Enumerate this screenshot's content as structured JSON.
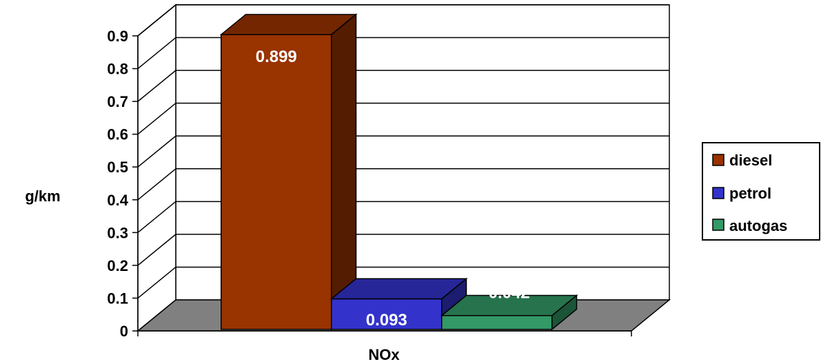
{
  "chart_data": {
    "type": "bar",
    "projection": "3d-clustered",
    "title": "",
    "xlabel": "",
    "ylabel": "g/km",
    "categories": [
      "NOx"
    ],
    "series": [
      {
        "name": "diesel",
        "values": [
          0.899
        ],
        "color": "#993300",
        "data_label": "0.899"
      },
      {
        "name": "petrol",
        "values": [
          0.093
        ],
        "color": "#3333CC",
        "data_label": "0.093"
      },
      {
        "name": "autogas",
        "values": [
          0.042
        ],
        "color": "#339966",
        "data_label": "0.042"
      }
    ],
    "ylim": [
      0,
      0.9
    ],
    "yticks": [
      0,
      0.1,
      0.2,
      0.3,
      0.4,
      0.5,
      0.6,
      0.7,
      0.8,
      0.9
    ],
    "ytick_labels": [
      "0",
      "0.1",
      "0.2",
      "0.3",
      "0.4",
      "0.5",
      "0.6",
      "0.7",
      "0.8",
      "0.9"
    ],
    "grid": true,
    "legend": "right",
    "colors": {
      "wall": "#ffffff",
      "floor": "#808080",
      "grid": "#000000"
    }
  }
}
